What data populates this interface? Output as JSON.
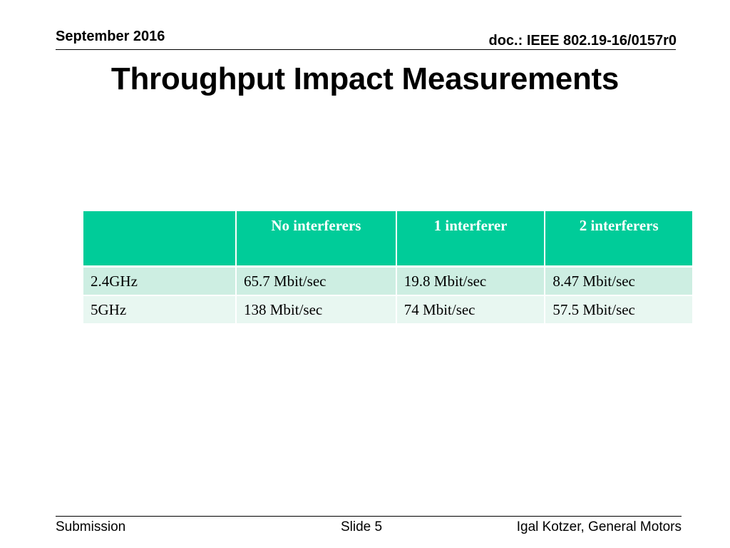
{
  "header": {
    "date": "September 2016",
    "doc": "doc.: IEEE 802.19-16/0157r0"
  },
  "slide": {
    "title": "Throughput Impact Measurements"
  },
  "table": {
    "columns": [
      "",
      "No interferers",
      "1 interferer",
      "2 interferers"
    ],
    "rows": [
      [
        "2.4GHz",
        "65.7 Mbit/sec",
        "19.8 Mbit/sec",
        "8.47 Mbit/sec"
      ],
      [
        "5GHz",
        "138 Mbit/sec",
        "74 Mbit/sec",
        "57.5 Mbit/sec"
      ]
    ]
  },
  "footer": {
    "left": "Submission",
    "center": "Slide 5",
    "right": "Igal Kotzer, General Motors"
  },
  "colors": {
    "table_header": "#00cc99",
    "row_odd": "#cdeee2",
    "row_even": "#e8f7f1"
  }
}
